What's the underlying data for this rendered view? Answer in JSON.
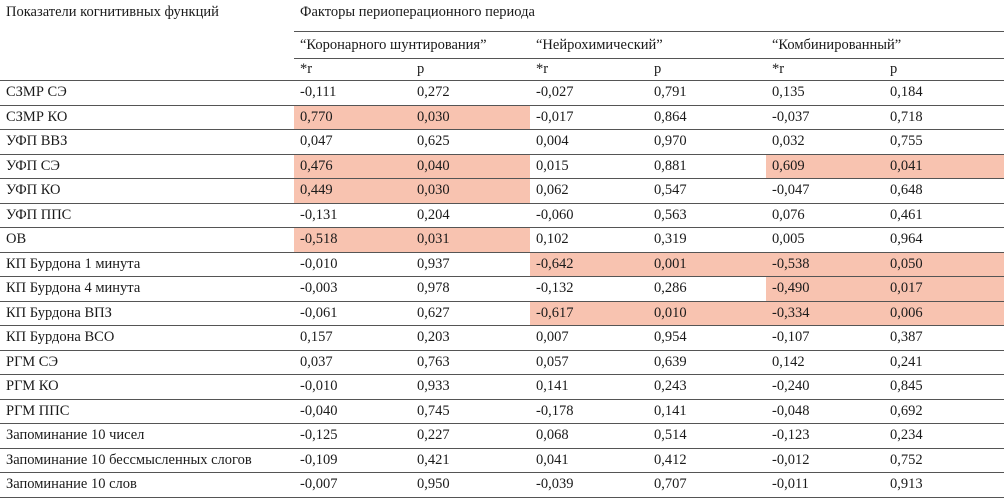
{
  "header": {
    "indicator_label": "Показатели когнитивных функций",
    "factors_label": "Факторы периоперационного периода",
    "groups": [
      "“Коронарного шунтирования”",
      "“Нейрохимический”",
      "“Комбинированный”"
    ],
    "r_label": "*r",
    "p_label": "p"
  },
  "highlight_color": "#f8c3b0",
  "rows": [
    {
      "name": "СЗМР СЭ",
      "vals": [
        "-0,111",
        "0,272",
        "-0,027",
        "0,791",
        "0,135",
        "0,184"
      ],
      "hl": [
        false,
        false,
        false
      ]
    },
    {
      "name": "СЗМР КО",
      "vals": [
        "0,770",
        "0,030",
        "-0,017",
        "0,864",
        "-0,037",
        "0,718"
      ],
      "hl": [
        true,
        false,
        false
      ]
    },
    {
      "name": "УФП ВВЗ",
      "vals": [
        "0,047",
        "0,625",
        "0,004",
        "0,970",
        "0,032",
        "0,755"
      ],
      "hl": [
        false,
        false,
        false
      ]
    },
    {
      "name": "УФП СЭ",
      "vals": [
        "0,476",
        "0,040",
        "0,015",
        "0,881",
        "0,609",
        "0,041"
      ],
      "hl": [
        true,
        false,
        true
      ]
    },
    {
      "name": "УФП КО",
      "vals": [
        "0,449",
        "0,030",
        "0,062",
        "0,547",
        "-0,047",
        "0,648"
      ],
      "hl": [
        true,
        false,
        false
      ]
    },
    {
      "name": "УФП ППС",
      "vals": [
        "-0,131",
        "0,204",
        "-0,060",
        "0,563",
        "0,076",
        "0,461"
      ],
      "hl": [
        false,
        false,
        false
      ]
    },
    {
      "name": "ОВ",
      "vals": [
        "-0,518",
        "0,031",
        "0,102",
        "0,319",
        "0,005",
        "0,964"
      ],
      "hl": [
        true,
        false,
        false
      ]
    },
    {
      "name": "КП Бурдона 1 минута",
      "vals": [
        "-0,010",
        "0,937",
        "-0,642",
        "0,001",
        "-0,538",
        "0,050"
      ],
      "hl": [
        false,
        true,
        true
      ]
    },
    {
      "name": "КП Бурдона 4 минута",
      "vals": [
        "-0,003",
        "0,978",
        "-0,132",
        "0,286",
        "-0,490",
        "0,017"
      ],
      "hl": [
        false,
        false,
        true
      ]
    },
    {
      "name": "КП Бурдона ВПЗ",
      "vals": [
        "-0,061",
        "0,627",
        "-0,617",
        "0,010",
        "-0,334",
        "0,006"
      ],
      "hl": [
        false,
        true,
        true
      ]
    },
    {
      "name": "КП Бурдона ВСО",
      "vals": [
        "0,157",
        "0,203",
        "0,007",
        "0,954",
        "-0,107",
        "0,387"
      ],
      "hl": [
        false,
        false,
        false
      ]
    },
    {
      "name": "РГМ СЭ",
      "vals": [
        "0,037",
        "0,763",
        "0,057",
        "0,639",
        "0,142",
        "0,241"
      ],
      "hl": [
        false,
        false,
        false
      ]
    },
    {
      "name": "РГМ КО",
      "vals": [
        "-0,010",
        "0,933",
        "0,141",
        "0,243",
        "-0,240",
        "0,845"
      ],
      "hl": [
        false,
        false,
        false
      ]
    },
    {
      "name": "РГМ ППС",
      "vals": [
        "-0,040",
        "0,745",
        "-0,178",
        "0,141",
        "-0,048",
        "0,692"
      ],
      "hl": [
        false,
        false,
        false
      ]
    },
    {
      "name": "Запоминание 10 чисел",
      "vals": [
        "-0,125",
        "0,227",
        "0,068",
        "0,514",
        "-0,123",
        "0,234"
      ],
      "hl": [
        false,
        false,
        false
      ]
    },
    {
      "name": "Запоминание 10 бессмысленных слогов",
      "vals": [
        "-0,109",
        "0,421",
        "0,041",
        "0,412",
        "-0,012",
        "0,752"
      ],
      "hl": [
        false,
        false,
        false
      ]
    },
    {
      "name": "Запоминание 10 слов",
      "vals": [
        "-0,007",
        "0,950",
        "-0,039",
        "0,707",
        "-0,011",
        "0,913"
      ],
      "hl": [
        false,
        false,
        false
      ]
    }
  ]
}
